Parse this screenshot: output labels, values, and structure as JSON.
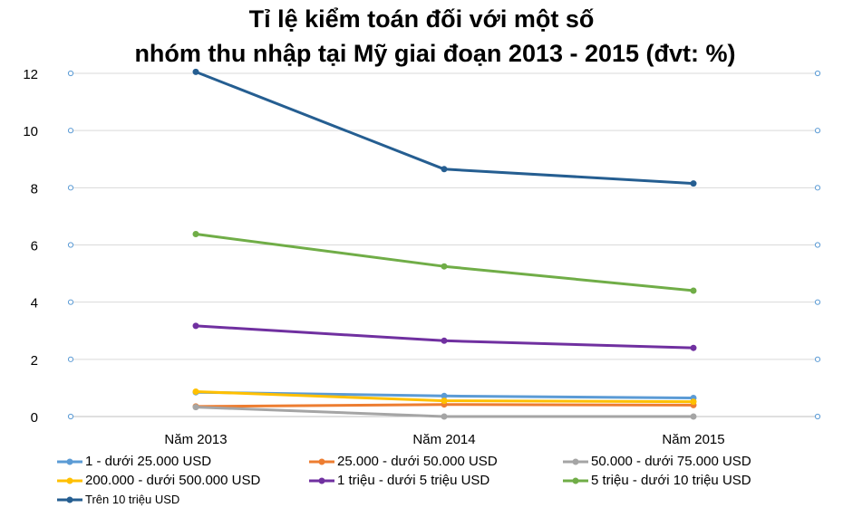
{
  "chart_data": {
    "type": "line",
    "title_line1": "Tỉ lệ kiểm toán đối với một số",
    "title_line2": "nhóm thu nhập tại Mỹ giai đoạn 2013 - 2015 (đvt: %)",
    "categories": [
      "Năm 2013",
      "Năm 2014",
      "Năm 2015"
    ],
    "ylim": [
      0,
      12
    ],
    "yticks": [
      "0",
      "2",
      "4",
      "6",
      "8",
      "10",
      "12"
    ],
    "grid": true,
    "legend_position": "bottom",
    "series": [
      {
        "name": "1 - dưới 25.000 USD",
        "color": "#5B9BD5",
        "values": [
          0.85,
          0.72,
          0.65
        ]
      },
      {
        "name": "25.000  - dưới 50.000 USD",
        "color": "#ED7D31",
        "values": [
          0.35,
          0.42,
          0.4
        ]
      },
      {
        "name": "50.000 - dưới 75.000 USD",
        "color": "#A5A5A5",
        "values": [
          0.33,
          0.0,
          0.0
        ]
      },
      {
        "name": "200.000 - dưới 500.000 USD",
        "color": "#FFC000",
        "values": [
          0.87,
          0.55,
          0.52
        ]
      },
      {
        "name": "1 triệu - dưới 5 triệu USD",
        "color": "#7030A0",
        "values": [
          3.17,
          2.65,
          2.4
        ]
      },
      {
        "name": "5 triệu - dưới 10 triệu USD",
        "color": "#70AD47",
        "values": [
          6.38,
          5.25,
          4.4
        ]
      },
      {
        "name": "Trên 10 triệu USD",
        "color": "#255E91",
        "values": [
          12.05,
          8.65,
          8.15
        ]
      }
    ]
  }
}
